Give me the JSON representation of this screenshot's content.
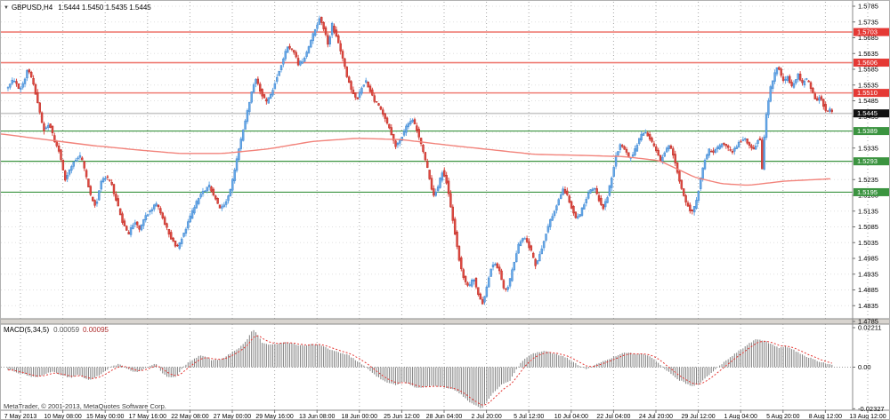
{
  "header": {
    "collapse_icon": "▼",
    "symbol": "GBPUSD,H4",
    "ohlc": "1.5444 1.5450 1.5435 1.5445"
  },
  "footer": {
    "copyright": "MetaTrader, © 2001-2013, MetaQuotes Software Corp."
  },
  "macd": {
    "label": "MACD(5,34,5)",
    "value_main": "0.00059",
    "value_signal": "0.00095",
    "yticks": [
      "0.02211",
      "0.00",
      "-0.02327"
    ],
    "ytick_values": [
      0.02211,
      0,
      -0.02327
    ]
  },
  "colors": {
    "candle_up": "#64a8e8",
    "candle_up_edge": "#3c7ec8",
    "candle_down": "#e04840",
    "candle_down_edge": "#b02820",
    "ma_line": "#f2837b",
    "resistance_line": "#ef7d74",
    "support_line": "#3b9440",
    "badge_red": "#e53935",
    "badge_green": "#3b9440",
    "badge_black": "#111111",
    "current_price_line": "#c8c8c8",
    "grid_h": "#e0e0e0",
    "grid_v": "#a8a8a8",
    "macd_bar": "#7f7f7f",
    "macd_signal": "#e53935",
    "panel_border": "#8a8a8a",
    "separator_fill": "#d8d4cf",
    "tick_text": "#000000"
  },
  "chart_data": {
    "type": "candlestick",
    "title": "GBPUSD H4 with MACD(5,34,5)",
    "main": {
      "ylim": [
        1.4785,
        1.5785
      ],
      "ytick_step": 0.005,
      "yticks_shown": [
        "1.5785",
        "1.5735",
        "1.5685",
        "1.5635",
        "1.5585",
        "1.5535",
        "1.5485",
        "1.5435",
        "1.5335",
        "1.5235",
        "1.5185",
        "1.5135",
        "1.5085",
        "1.5035",
        "1.4985",
        "1.4935",
        "1.4885",
        "1.4835",
        "1.4785"
      ],
      "current_price": 1.5445,
      "current_price_label": "1.5445",
      "price_lines": [
        {
          "label": "1.5703",
          "value": 1.5703,
          "kind": "resistance"
        },
        {
          "label": "1.5606",
          "value": 1.5606,
          "kind": "resistance"
        },
        {
          "label": "1.5510",
          "value": 1.551,
          "kind": "resistance"
        },
        {
          "label": "1.5389",
          "value": 1.5389,
          "kind": "support"
        },
        {
          "label": "1.5293",
          "value": 1.5293,
          "kind": "support"
        },
        {
          "label": "1.5195",
          "value": 1.5195,
          "kind": "support"
        }
      ],
      "path_anchors": [
        [
          8,
          1.5525
        ],
        [
          14,
          1.5558
        ],
        [
          20,
          1.552
        ],
        [
          26,
          1.5545
        ],
        [
          30,
          1.5588
        ],
        [
          36,
          1.5548
        ],
        [
          42,
          1.5468
        ],
        [
          48,
          1.539
        ],
        [
          54,
          1.5415
        ],
        [
          60,
          1.536
        ],
        [
          66,
          1.532
        ],
        [
          72,
          1.5235
        ],
        [
          78,
          1.527
        ],
        [
          84,
          1.53
        ],
        [
          90,
          1.531
        ],
        [
          96,
          1.524
        ],
        [
          102,
          1.517
        ],
        [
          107,
          1.5152
        ],
        [
          112,
          1.523
        ],
        [
          118,
          1.5245
        ],
        [
          124,
          1.5222
        ],
        [
          130,
          1.5165
        ],
        [
          136,
          1.5105
        ],
        [
          143,
          1.5058
        ],
        [
          150,
          1.5105
        ],
        [
          156,
          1.5075
        ],
        [
          162,
          1.512
        ],
        [
          168,
          1.5135
        ],
        [
          174,
          1.516
        ],
        [
          180,
          1.513
        ],
        [
          186,
          1.5082
        ],
        [
          192,
          1.5045
        ],
        [
          198,
          1.5018
        ],
        [
          204,
          1.5055
        ],
        [
          210,
          1.5095
        ],
        [
          216,
          1.514
        ],
        [
          222,
          1.5175
        ],
        [
          228,
          1.52
        ],
        [
          234,
          1.5215
        ],
        [
          240,
          1.518
        ],
        [
          246,
          1.514
        ],
        [
          252,
          1.5155
        ],
        [
          258,
          1.5205
        ],
        [
          264,
          1.5285
        ],
        [
          270,
          1.5365
        ],
        [
          276,
          1.544
        ],
        [
          282,
          1.552
        ],
        [
          287,
          1.5558
        ],
        [
          292,
          1.5512
        ],
        [
          298,
          1.548
        ],
        [
          304,
          1.551
        ],
        [
          310,
          1.556
        ],
        [
          316,
          1.5605
        ],
        [
          322,
          1.5658
        ],
        [
          328,
          1.5648
        ],
        [
          334,
          1.5602
        ],
        [
          340,
          1.5615
        ],
        [
          346,
          1.5655
        ],
        [
          352,
          1.5705
        ],
        [
          358,
          1.5748
        ],
        [
          363,
          1.571
        ],
        [
          368,
          1.5662
        ],
        [
          372,
          1.5728
        ],
        [
          376,
          1.5695
        ],
        [
          380,
          1.566
        ],
        [
          385,
          1.5605
        ],
        [
          390,
          1.5552
        ],
        [
          395,
          1.5512
        ],
        [
          400,
          1.5488
        ],
        [
          405,
          1.5528
        ],
        [
          410,
          1.5548
        ],
        [
          415,
          1.5518
        ],
        [
          420,
          1.5485
        ],
        [
          426,
          1.5465
        ],
        [
          432,
          1.5428
        ],
        [
          438,
          1.5385
        ],
        [
          444,
          1.534
        ],
        [
          450,
          1.5368
        ],
        [
          456,
          1.5405
        ],
        [
          462,
          1.5428
        ],
        [
          468,
          1.539
        ],
        [
          474,
          1.5325
        ],
        [
          480,
          1.5262
        ],
        [
          486,
          1.518
        ],
        [
          491,
          1.521
        ],
        [
          496,
          1.5262
        ],
        [
          501,
          1.5225
        ],
        [
          506,
          1.514
        ],
        [
          511,
          1.505
        ],
        [
          516,
          1.4965
        ],
        [
          521,
          1.491
        ],
        [
          526,
          1.4892
        ],
        [
          531,
          1.4928
        ],
        [
          536,
          1.4872
        ],
        [
          541,
          1.4842
        ],
        [
          546,
          1.4895
        ],
        [
          551,
          1.4958
        ],
        [
          556,
          1.4972
        ],
        [
          561,
          1.4935
        ],
        [
          566,
          1.4878
        ],
        [
          571,
          1.4905
        ],
        [
          576,
          1.4965
        ],
        [
          581,
          1.5025
        ],
        [
          586,
          1.5052
        ],
        [
          591,
          1.504
        ],
        [
          596,
          1.5005
        ],
        [
          601,
          1.4962
        ],
        [
          606,
          1.5
        ],
        [
          611,
          1.5052
        ],
        [
          616,
          1.5095
        ],
        [
          621,
          1.513
        ],
        [
          626,
          1.5165
        ],
        [
          631,
          1.5205
        ],
        [
          636,
          1.519
        ],
        [
          641,
          1.5148
        ],
        [
          646,
          1.511
        ],
        [
          651,
          1.5125
        ],
        [
          656,
          1.5165
        ],
        [
          661,
          1.52
        ],
        [
          666,
          1.5212
        ],
        [
          671,
          1.518
        ],
        [
          676,
          1.514
        ],
        [
          681,
          1.5175
        ],
        [
          686,
          1.524
        ],
        [
          691,
          1.5308
        ],
        [
          696,
          1.5345
        ],
        [
          701,
          1.533
        ],
        [
          706,
          1.5298
        ],
        [
          711,
          1.5318
        ],
        [
          716,
          1.5355
        ],
        [
          721,
          1.5388
        ],
        [
          726,
          1.5378
        ],
        [
          731,
          1.5355
        ],
        [
          736,
          1.533
        ],
        [
          741,
          1.5292
        ],
        [
          746,
          1.5322
        ],
        [
          751,
          1.5348
        ],
        [
          756,
          1.531
        ],
        [
          761,
          1.5248
        ],
        [
          766,
          1.5188
        ],
        [
          771,
          1.5155
        ],
        [
          776,
          1.5132
        ],
        [
          781,
          1.5158
        ],
        [
          786,
          1.5235
        ],
        [
          791,
          1.5298
        ],
        [
          796,
          1.533
        ],
        [
          801,
          1.5322
        ],
        [
          806,
          1.5338
        ],
        [
          811,
          1.5352
        ],
        [
          816,
          1.5338
        ],
        [
          821,
          1.5322
        ],
        [
          826,
          1.534
        ],
        [
          831,
          1.5358
        ],
        [
          836,
          1.5365
        ],
        [
          841,
          1.5342
        ],
        [
          846,
          1.533
        ],
        [
          851,
          1.5365
        ],
        [
          854,
          1.5355
        ],
        [
          856,
          1.5215
        ],
        [
          858,
          1.54
        ],
        [
          861,
          1.5458
        ],
        [
          864,
          1.5518
        ],
        [
          867,
          1.5548
        ],
        [
          870,
          1.5578
        ],
        [
          873,
          1.5598
        ],
        [
          876,
          1.557
        ],
        [
          880,
          1.5542
        ],
        [
          884,
          1.5562
        ],
        [
          888,
          1.5525
        ],
        [
          892,
          1.5548
        ],
        [
          896,
          1.5572
        ],
        [
          900,
          1.5535
        ],
        [
          904,
          1.5558
        ],
        [
          908,
          1.554
        ],
        [
          912,
          1.5512
        ],
        [
          916,
          1.5482
        ],
        [
          920,
          1.5502
        ],
        [
          924,
          1.5472
        ],
        [
          928,
          1.5442
        ],
        [
          932,
          1.5462
        ],
        [
          936,
          1.5445
        ]
      ],
      "ma_anchors": [
        [
          0,
          1.538
        ],
        [
          50,
          1.5362
        ],
        [
          100,
          1.5344
        ],
        [
          150,
          1.533
        ],
        [
          200,
          1.5318
        ],
        [
          250,
          1.5318
        ],
        [
          300,
          1.5332
        ],
        [
          350,
          1.5356
        ],
        [
          400,
          1.5366
        ],
        [
          450,
          1.5362
        ],
        [
          500,
          1.5345
        ],
        [
          550,
          1.533
        ],
        [
          600,
          1.5315
        ],
        [
          650,
          1.5312
        ],
        [
          700,
          1.5308
        ],
        [
          740,
          1.5295
        ],
        [
          780,
          1.5242
        ],
        [
          810,
          1.5222
        ],
        [
          840,
          1.5217
        ],
        [
          880,
          1.523
        ],
        [
          935,
          1.5238
        ]
      ]
    },
    "macd_series_anchors": [
      [
        8,
        -0.0012
      ],
      [
        20,
        -0.0032
      ],
      [
        32,
        -0.0048
      ],
      [
        40,
        -0.006
      ],
      [
        50,
        -0.004
      ],
      [
        58,
        -0.0022
      ],
      [
        68,
        -0.0045
      ],
      [
        78,
        -0.006
      ],
      [
        88,
        -0.0042
      ],
      [
        98,
        -0.0072
      ],
      [
        106,
        -0.006
      ],
      [
        116,
        -0.0025
      ],
      [
        126,
        0.0008
      ],
      [
        134,
        0.0018
      ],
      [
        142,
        -0.0008
      ],
      [
        150,
        -0.0028
      ],
      [
        158,
        -0.0018
      ],
      [
        166,
        0.0002
      ],
      [
        174,
        0.0018
      ],
      [
        182,
        -0.0035
      ],
      [
        190,
        -0.0062
      ],
      [
        198,
        -0.005
      ],
      [
        206,
        0.0008
      ],
      [
        214,
        0.0038
      ],
      [
        222,
        0.006
      ],
      [
        228,
        0.0065
      ],
      [
        236,
        0.0042
      ],
      [
        244,
        0.0038
      ],
      [
        252,
        0.0058
      ],
      [
        260,
        0.0085
      ],
      [
        268,
        0.011
      ],
      [
        276,
        0.015
      ],
      [
        283,
        0.0212
      ],
      [
        288,
        0.0185
      ],
      [
        294,
        0.0135
      ],
      [
        302,
        0.0125
      ],
      [
        310,
        0.013
      ],
      [
        318,
        0.0138
      ],
      [
        326,
        0.0135
      ],
      [
        334,
        0.0122
      ],
      [
        342,
        0.0122
      ],
      [
        350,
        0.0128
      ],
      [
        358,
        0.0125
      ],
      [
        366,
        0.0108
      ],
      [
        374,
        0.0092
      ],
      [
        382,
        0.008
      ],
      [
        390,
        0.0068
      ],
      [
        398,
        0.0042
      ],
      [
        406,
        0.0015
      ],
      [
        412,
        -0.0005
      ],
      [
        420,
        -0.0042
      ],
      [
        428,
        -0.0072
      ],
      [
        436,
        -0.0092
      ],
      [
        444,
        -0.0098
      ],
      [
        452,
        -0.0082
      ],
      [
        460,
        -0.0098
      ],
      [
        468,
        -0.0118
      ],
      [
        476,
        -0.0112
      ],
      [
        484,
        -0.0105
      ],
      [
        492,
        -0.0108
      ],
      [
        500,
        -0.0112
      ],
      [
        508,
        -0.0125
      ],
      [
        516,
        -0.0148
      ],
      [
        524,
        -0.0185
      ],
      [
        532,
        -0.0212
      ],
      [
        540,
        -0.0232
      ],
      [
        548,
        -0.0178
      ],
      [
        556,
        -0.0128
      ],
      [
        564,
        -0.0092
      ],
      [
        572,
        -0.0075
      ],
      [
        578,
        -0.0025
      ],
      [
        584,
        0.0025
      ],
      [
        592,
        0.006
      ],
      [
        600,
        0.008
      ],
      [
        610,
        0.009
      ],
      [
        618,
        0.0082
      ],
      [
        626,
        0.0068
      ],
      [
        634,
        0.0058
      ],
      [
        642,
        0.0032
      ],
      [
        650,
        0.0008
      ],
      [
        658,
        -0.0012
      ],
      [
        666,
        0.0008
      ],
      [
        674,
        0.0028
      ],
      [
        682,
        0.0042
      ],
      [
        690,
        0.0062
      ],
      [
        698,
        0.0078
      ],
      [
        706,
        0.008
      ],
      [
        714,
        0.0072
      ],
      [
        722,
        0.0075
      ],
      [
        730,
        0.0058
      ],
      [
        738,
        0.0028
      ],
      [
        746,
        -0.0012
      ],
      [
        754,
        -0.0042
      ],
      [
        762,
        -0.0072
      ],
      [
        770,
        -0.0092
      ],
      [
        778,
        -0.0108
      ],
      [
        786,
        -0.0088
      ],
      [
        794,
        -0.0052
      ],
      [
        802,
        -0.0018
      ],
      [
        810,
        0.0018
      ],
      [
        818,
        0.0048
      ],
      [
        826,
        0.008
      ],
      [
        834,
        0.0108
      ],
      [
        842,
        0.0138
      ],
      [
        850,
        0.0158
      ],
      [
        858,
        0.0148
      ],
      [
        866,
        0.0128
      ],
      [
        874,
        0.0108
      ],
      [
        882,
        0.0118
      ],
      [
        890,
        0.0098
      ],
      [
        898,
        0.0078
      ],
      [
        906,
        0.0058
      ],
      [
        914,
        0.0042
      ],
      [
        922,
        0.0028
      ],
      [
        930,
        0.0015
      ],
      [
        936,
        0.0008
      ]
    ],
    "xticks": {
      "labels": [
        "7 May 2013",
        "10 May 08:00",
        "15 May 00:00",
        "17 May 16:00",
        "22 May 08:00",
        "27 May 00:00",
        "29 May 16:00",
        "13 Jun 08:00",
        "18 Jun 00:00",
        "25 Jun 12:00",
        "28 Jun 04:00",
        "2 Jul 20:00",
        "5 Jul 12:00",
        "10 Jul 04:00",
        "22 Jul 04:00",
        "24 Jul 20:00",
        "29 Jul 12:00",
        "1 Aug 04:00",
        "5 Aug 20:00",
        "8 Aug 12:00",
        "13 Aug 12:00"
      ]
    },
    "layout_hints": {
      "grid": true,
      "legend": false,
      "bars_per_xtick": 20
    }
  }
}
